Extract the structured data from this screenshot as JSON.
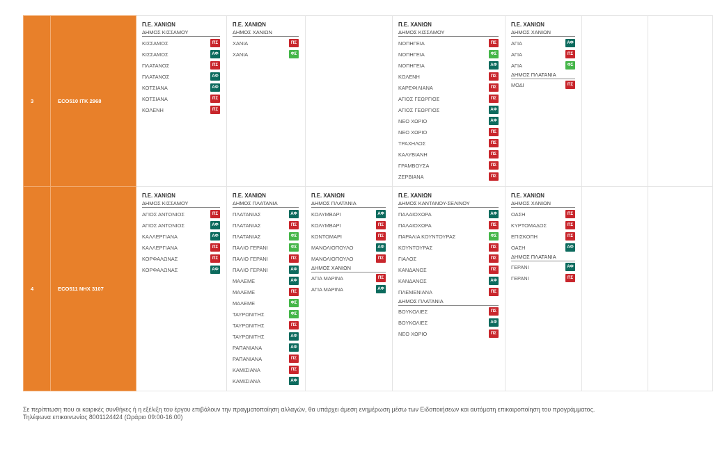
{
  "theme": {
    "accent": "#e8802a"
  },
  "badge_colors": {
    "ΠΣ": "#c8262c",
    "ΑΦ": "#0d6b5e",
    "ΦΣ": "#45b649"
  },
  "rows": [
    {
      "num": "3",
      "vehicle": "ECO510 ITK 2968",
      "days": [
        {
          "region": "Π.Ε. ΧΑΝΙΩΝ",
          "entries": [
            {
              "sub": "ΔΗΜΟΣ ΚΙΣΣΑΜΟΥ"
            },
            {
              "place": "ΚΙΣΣΑΜΟΣ",
              "badge": "ΠΣ"
            },
            {
              "place": "ΚΙΣΣΑΜΟΣ",
              "badge": "ΑΦ"
            },
            {
              "place": "ΠΛΑΤΑΝΟΣ",
              "badge": "ΠΣ"
            },
            {
              "place": "ΠΛΑΤΑΝΟΣ",
              "badge": "ΑΦ"
            },
            {
              "place": "ΚΟΤΣΙΑΝΑ",
              "badge": "ΑΦ"
            },
            {
              "place": "ΚΟΤΣΙΑΝΑ",
              "badge": "ΠΣ"
            },
            {
              "place": "ΚΟΛΕΝΗ",
              "badge": "ΠΣ"
            }
          ]
        },
        {
          "region": "Π.Ε. ΧΑΝΙΩΝ",
          "entries": [
            {
              "sub": "ΔΗΜΟΣ ΧΑΝΙΩΝ"
            },
            {
              "place": "ΧΑΝΙΑ",
              "badge": "ΠΣ"
            },
            {
              "place": "ΧΑΝΙΑ",
              "badge": "ΦΣ"
            }
          ]
        },
        null,
        {
          "region": "Π.Ε. ΧΑΝΙΩΝ",
          "entries": [
            {
              "sub": "ΔΗΜΟΣ ΚΙΣΣΑΜΟΥ"
            },
            {
              "place": "ΝΟΠΗΓΕΙΑ",
              "badge": "ΠΣ"
            },
            {
              "place": "ΝΟΠΗΓΕΙΑ",
              "badge": "ΦΣ"
            },
            {
              "place": "ΝΟΠΗΓΕΙΑ",
              "badge": "ΑΦ"
            },
            {
              "place": "ΚΟΛΕΝΗ",
              "badge": "ΠΣ"
            },
            {
              "place": "ΚΑΡΕΦΙΛΙΑΝΑ",
              "badge": "ΠΣ"
            },
            {
              "place": "ΑΓΙΟΣ ΓΕΩΡΓΙΟΣ",
              "badge": "ΠΣ"
            },
            {
              "place": "ΑΓΙΟΣ ΓΕΩΡΓΙΟΣ",
              "badge": "ΑΦ"
            },
            {
              "place": "ΝΕΟ ΧΩΡΙΟ",
              "badge": "ΑΦ"
            },
            {
              "place": "ΝΕΟ ΧΩΡΙΟ",
              "badge": "ΠΣ"
            },
            {
              "place": "ΤΡΑΧΗΛΟΣ",
              "badge": "ΠΣ"
            },
            {
              "place": "ΚΑΛΥΒΙΑΝΗ",
              "badge": "ΠΣ"
            },
            {
              "place": "ΓΡΑΜΒΟΥΣΑ",
              "badge": "ΠΣ"
            },
            {
              "place": "ΖΕΡΒΙΑΝΑ",
              "badge": "ΠΣ"
            }
          ]
        },
        {
          "region": "Π.Ε. ΧΑΝΙΩΝ",
          "entries": [
            {
              "sub": "ΔΗΜΟΣ ΧΑΝΙΩΝ"
            },
            {
              "place": "ΑΓΙΑ",
              "badge": "ΑΦ"
            },
            {
              "place": "ΑΓΙΑ",
              "badge": "ΠΣ"
            },
            {
              "place": "ΑΓΙΑ",
              "badge": "ΦΣ"
            },
            {
              "sub": "ΔΗΜΟΣ ΠΛΑΤΑΝΙΑ"
            },
            {
              "place": "ΜΟΔΙ",
              "badge": "ΠΣ"
            }
          ]
        },
        null,
        null
      ]
    },
    {
      "num": "4",
      "vehicle": "ECO511 NHX 3107",
      "days": [
        {
          "region": "Π.Ε. ΧΑΝΙΩΝ",
          "entries": [
            {
              "sub": "ΔΗΜΟΣ ΚΙΣΣΑΜΟΥ"
            },
            {
              "place": "ΑΓΙΟΣ ΑΝΤΩΝΙΟΣ",
              "badge": "ΠΣ"
            },
            {
              "place": "ΑΓΙΟΣ ΑΝΤΩΝΙΟΣ",
              "badge": "ΑΦ"
            },
            {
              "place": "ΚΑΛΛΕΡΓΙΑΝΑ",
              "badge": "ΑΦ"
            },
            {
              "place": "ΚΑΛΛΕΡΓΙΑΝΑ",
              "badge": "ΠΣ"
            },
            {
              "place": "ΚΟΡΦΑΛΩΝΑΣ",
              "badge": "ΠΣ"
            },
            {
              "place": "ΚΟΡΦΑΛΩΝΑΣ",
              "badge": "ΑΦ"
            }
          ]
        },
        {
          "region": "Π.Ε. ΧΑΝΙΩΝ",
          "entries": [
            {
              "sub": "ΔΗΜΟΣ ΠΛΑΤΑΝΙΑ"
            },
            {
              "place": "ΠΛΑΤΑΝΙΑΣ",
              "badge": "ΑΦ"
            },
            {
              "place": "ΠΛΑΤΑΝΙΑΣ",
              "badge": "ΠΣ"
            },
            {
              "place": "ΠΛΑΤΑΝΙΑΣ",
              "badge": "ΦΣ"
            },
            {
              "place": "ΠΑΛΙΟ ΓΕΡΑΝΙ",
              "badge": "ΦΣ"
            },
            {
              "place": "ΠΑΛΙΟ ΓΕΡΑΝΙ",
              "badge": "ΠΣ"
            },
            {
              "place": "ΠΑΛΙΟ ΓΕΡΑΝΙ",
              "badge": "ΑΦ"
            },
            {
              "place": "ΜΑΛΕΜΕ",
              "badge": "ΑΦ"
            },
            {
              "place": "ΜΑΛΕΜΕ",
              "badge": "ΠΣ"
            },
            {
              "place": "ΜΑΛΕΜΕ",
              "badge": "ΦΣ"
            },
            {
              "place": "ΤΑΥΡΩΝΙΤΗΣ",
              "badge": "ΦΣ"
            },
            {
              "place": "ΤΑΥΡΩΝΙΤΗΣ",
              "badge": "ΠΣ"
            },
            {
              "place": "ΤΑΥΡΩΝΙΤΗΣ",
              "badge": "ΑΦ"
            },
            {
              "place": "ΡΑΠΑΝΙΑΝΑ",
              "badge": "ΑΦ"
            },
            {
              "place": "ΡΑΠΑΝΙΑΝΑ",
              "badge": "ΠΣ"
            },
            {
              "place": "ΚΑΜΙΣΙΑΝΑ",
              "badge": "ΠΣ"
            },
            {
              "place": "ΚΑΜΙΣΙΑΝΑ",
              "badge": "ΑΦ"
            }
          ]
        },
        {
          "region": "Π.Ε. ΧΑΝΙΩΝ",
          "entries": [
            {
              "sub": "ΔΗΜΟΣ ΠΛΑΤΑΝΙΑ"
            },
            {
              "place": "ΚΟΛΥΜΒΑΡΙ",
              "badge": "ΑΦ"
            },
            {
              "place": "ΚΟΛΥΜΒΑΡΙ",
              "badge": "ΠΣ"
            },
            {
              "place": "ΚΟΝΤΟΜΑΡΙ",
              "badge": "ΠΣ"
            },
            {
              "place": "ΜΑΝΟΛΙΟΠΟΥΛΟ",
              "badge": "ΑΦ"
            },
            {
              "place": "ΜΑΝΟΛΙΟΠΟΥΛΟ",
              "badge": "ΠΣ"
            },
            {
              "sub": "ΔΗΜΟΣ ΧΑΝΙΩΝ"
            },
            {
              "place": "ΑΓΙΑ ΜΑΡΙΝΑ",
              "badge": "ΠΣ"
            },
            {
              "place": "ΑΓΙΑ ΜΑΡΙΝΑ",
              "badge": "ΑΦ"
            }
          ]
        },
        {
          "region": "Π.Ε. ΧΑΝΙΩΝ",
          "entries": [
            {
              "sub": "ΔΗΜΟΣ ΚΑΝΤΑΝΟΥ-ΣΕΛΙΝΟΥ"
            },
            {
              "place": "ΠΑΛΑΙΟΧΩΡΑ",
              "badge": "ΑΦ"
            },
            {
              "place": "ΠΑΛΑΙΟΧΩΡΑ",
              "badge": "ΠΣ"
            },
            {
              "place": "ΠΑΡΑΛΙΑ ΚΟΥΝΤΟΥΡΑΣ",
              "badge": "ΦΣ"
            },
            {
              "place": "ΚΟΥΝΤΟΥΡΑΣ",
              "badge": "ΠΣ"
            },
            {
              "place": "ΓΙΑΛΟΣ",
              "badge": "ΠΣ"
            },
            {
              "place": "ΚΑΝΔΑΝΟΣ",
              "badge": "ΠΣ"
            },
            {
              "place": "ΚΑΝΔΑΝΟΣ",
              "badge": "ΑΦ"
            },
            {
              "place": "ΠΛΕΜΕΝΙΑΝΑ",
              "badge": "ΠΣ"
            },
            {
              "sub": "ΔΗΜΟΣ ΠΛΑΤΑΝΙΑ"
            },
            {
              "place": "ΒΟΥΚΟΛΙΕΣ",
              "badge": "ΠΣ"
            },
            {
              "place": "ΒΟΥΚΟΛΙΕΣ",
              "badge": "ΑΦ"
            },
            {
              "place": "ΝΕΟ ΧΩΡΙΟ",
              "badge": "ΠΣ"
            }
          ]
        },
        {
          "region": "Π.Ε. ΧΑΝΙΩΝ",
          "entries": [
            {
              "sub": "ΔΗΜΟΣ ΧΑΝΙΩΝ"
            },
            {
              "place": "ΟΑΣΗ",
              "badge": "ΠΣ"
            },
            {
              "place": "ΚΥΡΤΟΜΑΔΟΣ",
              "badge": "ΠΣ"
            },
            {
              "place": "ΕΠΙΣΚΟΠΗ",
              "badge": "ΠΣ"
            },
            {
              "place": "ΟΑΣΗ",
              "badge": "ΑΦ"
            },
            {
              "sub": "ΔΗΜΟΣ ΠΛΑΤΑΝΙΑ"
            },
            {
              "place": "ΓΕΡΑΝΙ",
              "badge": "ΑΦ"
            },
            {
              "place": "ΓΕΡΑΝΙ",
              "badge": "ΠΣ"
            }
          ]
        },
        null,
        null
      ]
    }
  ],
  "footer": {
    "note": "Σε περίπτωση που οι καιρικές συνθήκες ή η εξέλιξη του έργου επιβάλουν την πραγματοποίηση αλλαγών, θα υπάρχει άμεση ενημέρωση μέσω των Ειδοποιήσεων και αυτόματη επικαιροποίηση του προγράμματος.",
    "phone": "Τηλέφωνα επικοινωνίας 8001124424 (Ωράριο 09:00-16:00)"
  }
}
